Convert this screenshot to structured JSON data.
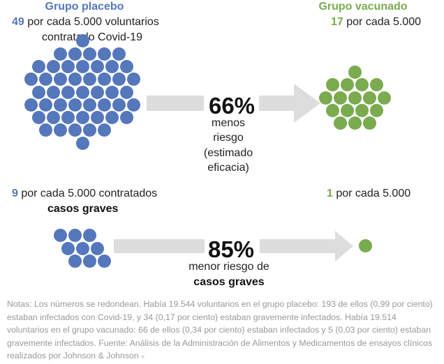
{
  "colors": {
    "placebo": "#5577bb",
    "vaccinated": "#7aab4f",
    "arrow": "#dddddd"
  },
  "placebo": {
    "title": "Grupo placebo",
    "count": "49",
    "count_text": "por cada 5.000 voluntarios",
    "count_text2": "contratado Covid-19",
    "severe_count": "9",
    "severe_text": "por cada 5.000 contratados",
    "severe_label": "casos graves",
    "dots": 49,
    "severe_dots": 9
  },
  "vaccinated": {
    "title": "Grupo vacunado",
    "count": "17",
    "count_text": "por cada 5.000",
    "severe_count": "1",
    "severe_text": "por cada 5.000",
    "dots": 17,
    "severe_dots": 1
  },
  "efficacy": {
    "value": "66%",
    "lines": [
      "menos",
      "riesgo",
      "(estimado",
      "eficacia)"
    ]
  },
  "severe": {
    "value": "85%",
    "line1": "menor riesgo de",
    "line2": "casos graves"
  },
  "notes": "Notas: Los números se redondean. Había 19.544 voluntarios en el grupo placebo: 193 de ellos (0,99 por ciento) estaban infectados con Covid-19, y 34 (0,17 por ciento) estaban gravemente infectados. Había 19.514 voluntarios en el grupo vacunado: 66 de ellos (0,34 por ciento) estaban infectados y 5 (0,03 por ciento) estaban gravemente infectados. Fuente: Análisis de la Administración de Alimentos y Medicamentos de ensayos clínicos realizados por Johnson & Johnson"
}
